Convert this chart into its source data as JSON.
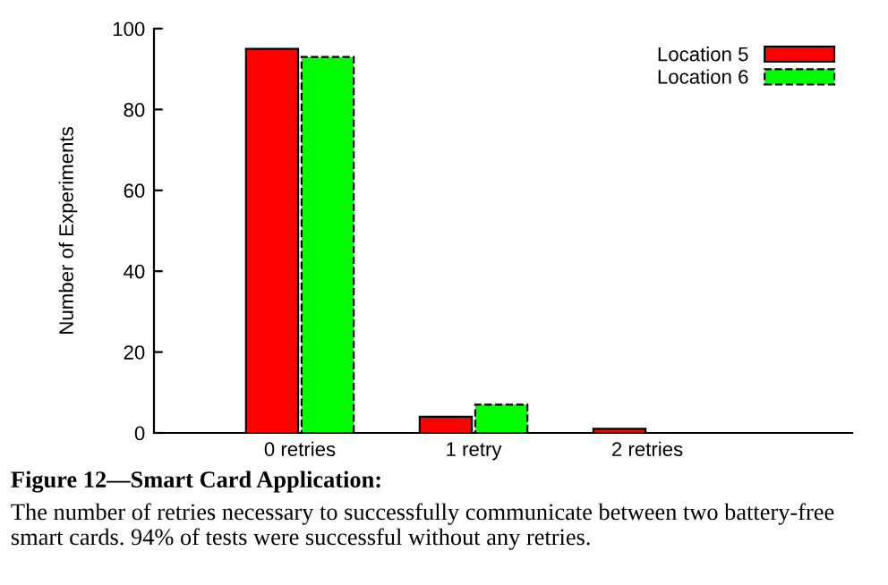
{
  "chart_data": {
    "type": "bar",
    "title": "Figure 12—Smart Card Application:",
    "subtitle": "The number of retries necessary to successfully communicate between two battery-free smart cards. 94% of tests were successful without any retries.",
    "ylabel": "Number of Experiments",
    "categories": [
      "0 retries",
      "1 retry",
      "2 retries"
    ],
    "series": [
      {
        "name": "Location 5",
        "color": "#ff0000",
        "values": [
          95,
          4,
          1
        ],
        "line_style": "solid"
      },
      {
        "name": "Location 6",
        "color": "#00ff00",
        "values": [
          93,
          7,
          null
        ],
        "line_style": "dashed"
      }
    ],
    "ylim": [
      0,
      100
    ],
    "yticks": [
      0,
      20,
      40,
      60,
      80,
      100
    ],
    "grid": false,
    "legend": "top right"
  }
}
